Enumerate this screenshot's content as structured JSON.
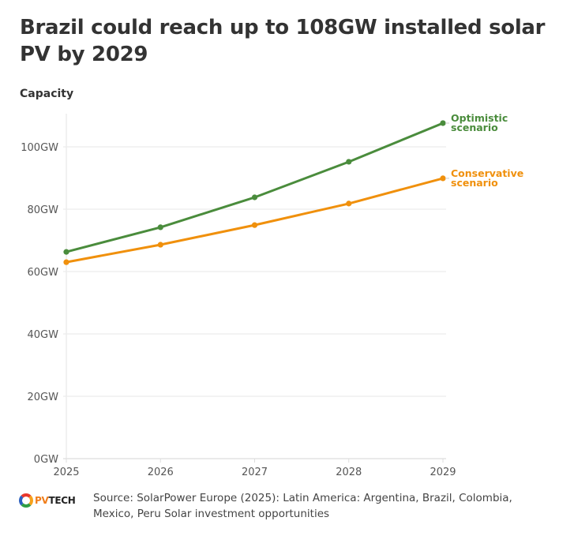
{
  "header": {
    "title": "Brazil could reach up to 108GW installed solar PV by 2029",
    "axis_title": "Capacity"
  },
  "colors": {
    "optimistic": "#4a8c3c",
    "conservative": "#f0900c",
    "grid": "#e8e8e8",
    "text": "#333333"
  },
  "chart_data": {
    "type": "line",
    "title": "Brazil could reach up to 108GW installed solar PV by 2029",
    "xlabel": "",
    "ylabel": "Capacity",
    "x": [
      "2025",
      "2026",
      "2027",
      "2028",
      "2029"
    ],
    "ylim": [
      0,
      110
    ],
    "yticks": [
      0,
      20,
      40,
      60,
      80,
      100
    ],
    "ytick_labels": [
      "0GW",
      "20GW",
      "40GW",
      "60GW",
      "80GW",
      "100GW"
    ],
    "grid": true,
    "legend": "right (direct labels at line ends)",
    "series": [
      {
        "name": "Optimistic scenario",
        "label_lines": [
          "Optimistic",
          "scenario"
        ],
        "color": "#4a8c3c",
        "values": [
          66.3,
          74.2,
          83.8,
          95.2,
          107.6
        ]
      },
      {
        "name": "Conservative scenario",
        "label_lines": [
          "Conservative",
          "scenario"
        ],
        "color": "#f0900c",
        "values": [
          63.0,
          68.6,
          74.9,
          81.8,
          89.9
        ]
      }
    ]
  },
  "footer": {
    "logo_pv": "PV",
    "logo_tech": "TECH",
    "source": "Source: SolarPower Europe (2025): Latin America: Argentina, Brazil, Colombia, Mexico, Peru Solar investment opportunities"
  }
}
